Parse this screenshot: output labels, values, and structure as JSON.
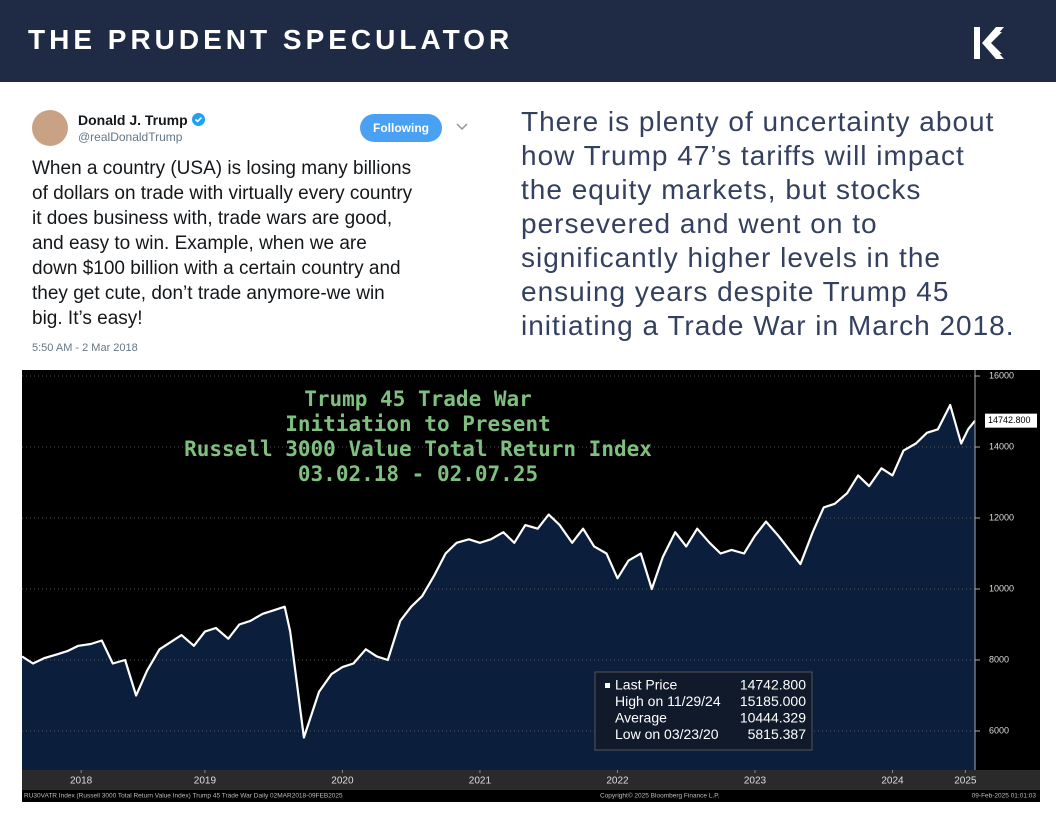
{
  "header": {
    "title": "THE PRUDENT SPECULATOR"
  },
  "tweet": {
    "name": "Donald J. Trump",
    "handle": "@realDonaldTrump",
    "button": "Following",
    "lines": [
      "When a country (USA) is losing many billions",
      "of dollars on trade with virtually every country",
      "it does business with, trade wars are good,",
      "and easy to win. Example, when we are",
      "down $100 billion with a certain country and",
      "they get cute, don’t trade anymore-we win",
      "big. It’s easy!"
    ],
    "time": "5:50 AM - 2 Mar 2018"
  },
  "commentary": {
    "lines": [
      "There is plenty of uncertainty about",
      "how Trump 47’s tariffs will impact",
      "the equity markets, but stocks",
      "persevered and went on to",
      "significantly higher levels in the",
      "ensuing years despite Trump 45",
      "initiating a Trade War in March 2018."
    ]
  },
  "chart_data": {
    "type": "area",
    "title_lines": [
      "Trump 45 Trade War",
      "Initiation to Present",
      "Russell 3000 Value Total Return Index",
      "03.02.18 - 02.07.25"
    ],
    "color": "#ffffff",
    "fill": "#0b1f3d",
    "x": [
      2018.17,
      2018.25,
      2018.33,
      2018.42,
      2018.5,
      2018.58,
      2018.67,
      2018.75,
      2018.83,
      2018.92,
      2019.0,
      2019.08,
      2019.17,
      2019.25,
      2019.33,
      2019.42,
      2019.5,
      2019.58,
      2019.67,
      2019.75,
      2019.83,
      2019.92,
      2020.0,
      2020.08,
      2020.12,
      2020.22,
      2020.33,
      2020.42,
      2020.5,
      2020.58,
      2020.67,
      2020.75,
      2020.83,
      2020.92,
      2021.0,
      2021.08,
      2021.17,
      2021.25,
      2021.33,
      2021.42,
      2021.5,
      2021.58,
      2021.67,
      2021.75,
      2021.83,
      2021.92,
      2022.0,
      2022.08,
      2022.17,
      2022.25,
      2022.33,
      2022.42,
      2022.5,
      2022.58,
      2022.67,
      2022.75,
      2022.83,
      2022.92,
      2023.0,
      2023.08,
      2023.17,
      2023.25,
      2023.33,
      2023.42,
      2023.5,
      2023.58,
      2023.67,
      2023.75,
      2023.83,
      2023.92,
      2024.0,
      2024.08,
      2024.17,
      2024.25,
      2024.33,
      2024.42,
      2024.5,
      2024.58,
      2024.67,
      2024.75,
      2024.83,
      2024.92,
      2025.0,
      2025.05,
      2025.1
    ],
    "values": [
      8100,
      7900,
      8050,
      8150,
      8250,
      8400,
      8450,
      8550,
      7900,
      8000,
      7000,
      7700,
      8300,
      8500,
      8700,
      8400,
      8800,
      8900,
      8600,
      9000,
      9100,
      9300,
      9400,
      9500,
      8800,
      5815,
      7100,
      7600,
      7800,
      7900,
      8300,
      8100,
      8000,
      9100,
      9500,
      9800,
      10400,
      11000,
      11300,
      11400,
      11300,
      11400,
      11600,
      11300,
      11800,
      11700,
      12100,
      11800,
      11300,
      11700,
      11200,
      11000,
      10300,
      10800,
      11000,
      10000,
      10900,
      11600,
      11200,
      11700,
      11300,
      11000,
      11100,
      11000,
      11500,
      11900,
      11500,
      11100,
      10700,
      11600,
      12300,
      12400,
      12700,
      13200,
      12900,
      13400,
      13200,
      13900,
      14100,
      14400,
      14500,
      15185,
      14100,
      14500,
      14742.8
    ],
    "xlim": [
      2018.17,
      2025.1
    ],
    "xticks": [
      {
        "value": 2018.6,
        "label": "2018"
      },
      {
        "value": 2019.5,
        "label": "2019"
      },
      {
        "value": 2020.5,
        "label": "2020"
      },
      {
        "value": 2021.5,
        "label": "2021"
      },
      {
        "value": 2022.5,
        "label": "2022"
      },
      {
        "value": 2023.5,
        "label": "2023"
      },
      {
        "value": 2024.5,
        "label": "2024"
      },
      {
        "value": 2025.03,
        "label": "2025"
      }
    ],
    "ylim": [
      4900,
      16170
    ],
    "yticks": [
      6000,
      8000,
      10000,
      12000,
      14000,
      16000
    ],
    "grid": true,
    "stats": [
      {
        "label": "Last Price",
        "value": "14742.800"
      },
      {
        "label": "High on 11/29/24",
        "value": "15185.000"
      },
      {
        "label": "Average",
        "value": "10444.329"
      },
      {
        "label": "Low on 03/23/20",
        "value": "5815.387"
      }
    ],
    "last_value": 14742.8,
    "last_label": "14742.800",
    "footer": [
      "RU30VATR Index (Russell 3000 Total Return Value Index) Trump 45 Trade War  Daily 02MAR2018-09FEB2025",
      "Copyright© 2025 Bloomberg Finance L.P.",
      "09-Feb-2025 01:01:03"
    ]
  }
}
